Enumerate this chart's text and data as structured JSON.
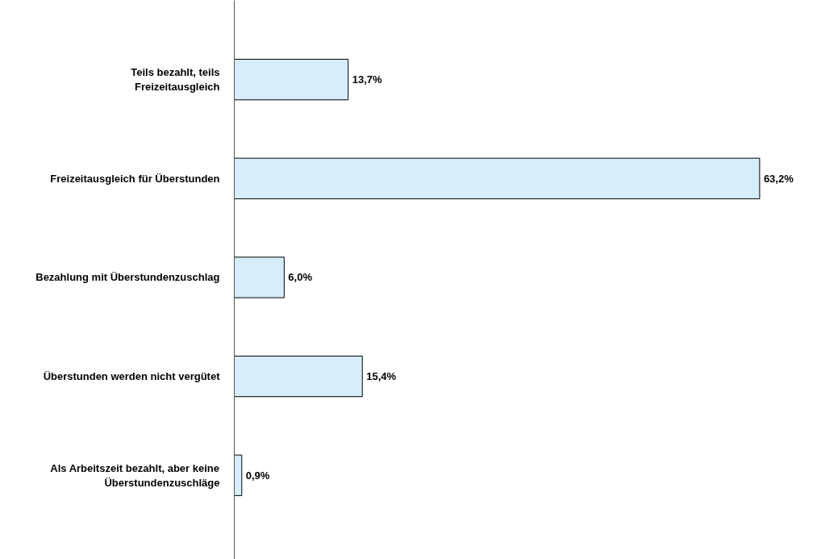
{
  "chart_data": {
    "type": "bar",
    "orientation": "horizontal",
    "categories": [
      "Teils bezahlt, teils Freizeitausgleich",
      "Freizeitausgleich für Überstunden",
      "Bezahlung mit Überstundenzuschlag",
      "Überstunden werden nicht vergütet",
      "Als Arbeitszeit bezahlt, aber keine Überstundenzuschläge"
    ],
    "values": [
      13.7,
      63.2,
      6.0,
      15.4,
      0.9
    ],
    "value_labels": [
      "13,7%",
      "63,2%",
      "6,0%",
      "15,4%",
      "0,9%"
    ],
    "color": "#d6eef9",
    "grid": false
  }
}
